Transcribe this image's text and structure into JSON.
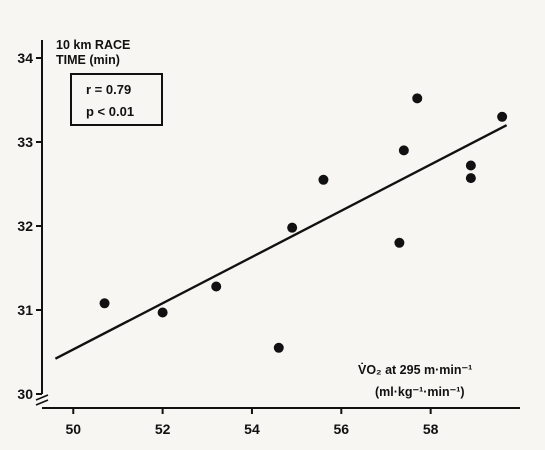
{
  "chart_data": {
    "type": "scatter",
    "ylabel_line1": "10 km RACE",
    "ylabel_line2": "TIME (min)",
    "xlabel_line1": "V̇O₂ at 295 m·min⁻¹",
    "xlabel_line2": "(ml·kg⁻¹·min⁻¹)",
    "stats": [
      "r = 0.79",
      "p < 0.01"
    ],
    "xlim": [
      49.3,
      60.0
    ],
    "ylim": [
      30.0,
      34.0
    ],
    "x_ticks": [
      50,
      52,
      54,
      56,
      58
    ],
    "y_ticks": [
      30,
      31,
      32,
      33,
      34
    ],
    "points": [
      {
        "x": 50.7,
        "y": 31.08
      },
      {
        "x": 52.0,
        "y": 30.97
      },
      {
        "x": 53.2,
        "y": 31.28
      },
      {
        "x": 54.6,
        "y": 30.55
      },
      {
        "x": 54.9,
        "y": 31.98
      },
      {
        "x": 55.6,
        "y": 32.55
      },
      {
        "x": 57.3,
        "y": 31.8
      },
      {
        "x": 57.4,
        "y": 32.9
      },
      {
        "x": 57.7,
        "y": 33.52
      },
      {
        "x": 58.9,
        "y": 32.72
      },
      {
        "x": 58.9,
        "y": 32.57
      },
      {
        "x": 59.6,
        "y": 33.3
      }
    ],
    "regression": {
      "x": [
        49.6,
        59.7
      ],
      "y": [
        30.42,
        33.2
      ]
    },
    "grid": false,
    "colors": {
      "ink": "#111111",
      "background": "#f7f6f3"
    }
  }
}
